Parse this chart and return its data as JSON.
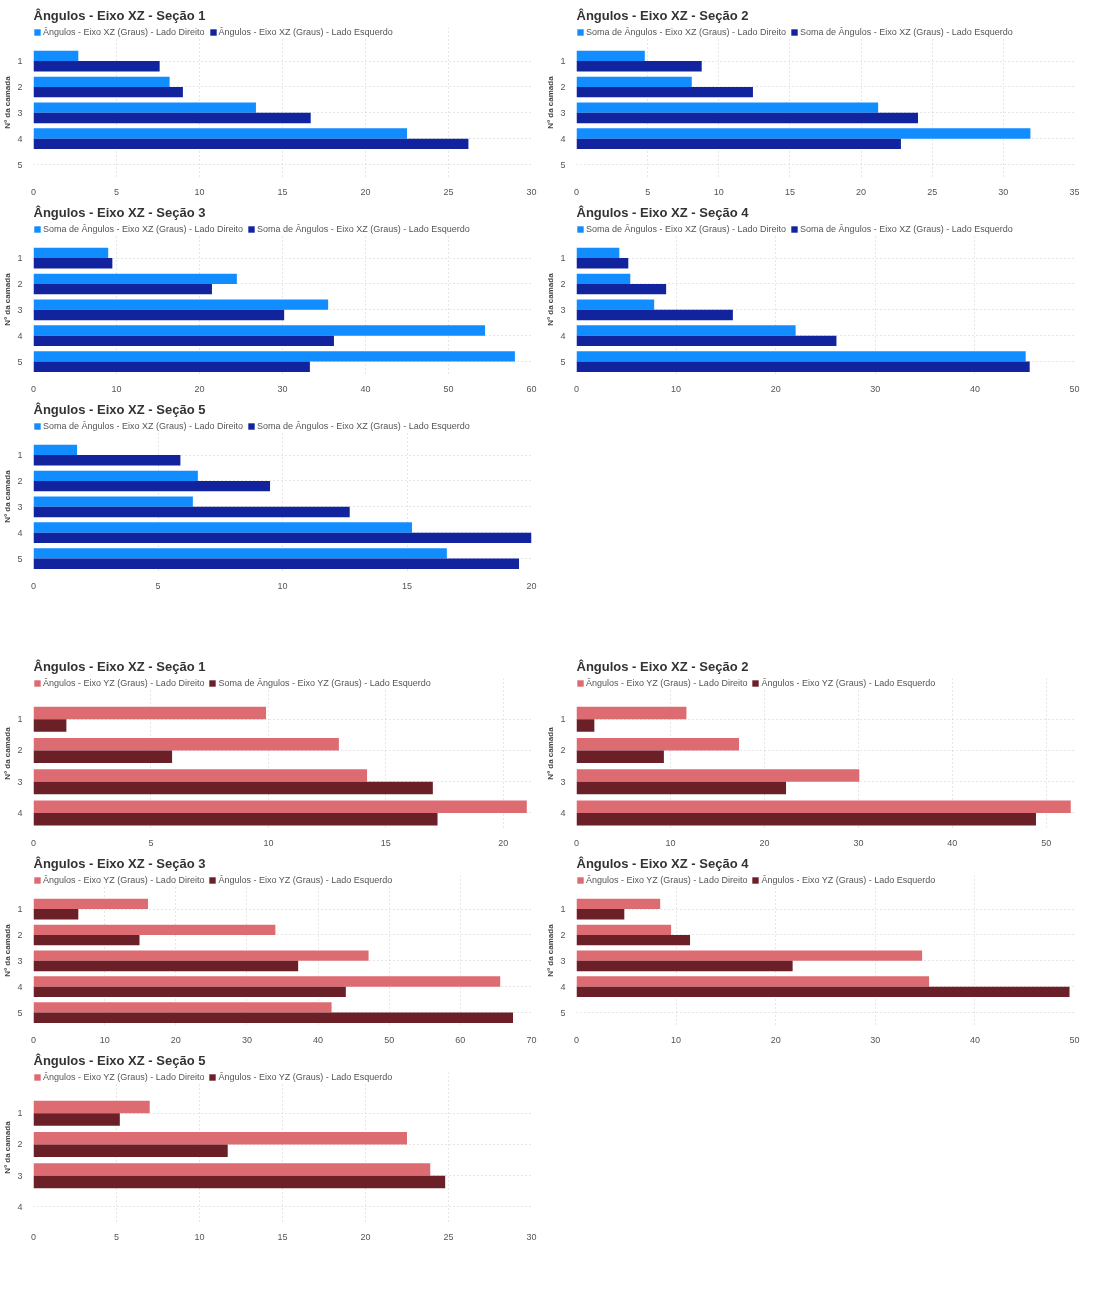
{
  "chart_data": [
    {
      "type": "bar",
      "orientation": "horizontal",
      "title": "Ângulos - Eixo XZ - Seção 1",
      "ylabel": "Nº da camada",
      "categories": [
        "1",
        "2",
        "3",
        "4",
        "5"
      ],
      "xlim": [
        0,
        30
      ],
      "xticks": [
        0,
        5,
        10,
        15,
        20,
        25,
        30
      ],
      "grid": true,
      "legend": "top left",
      "series": [
        {
          "name": "Ângulos - Eixo XZ (Graus) - Lado Direito",
          "color": "#118dff",
          "values": [
            2.7,
            8.2,
            13.4,
            22.5,
            null
          ]
        },
        {
          "name": "Ângulos - Eixo XZ (Graus) - Lado Esquerdo",
          "color": "#12239e",
          "values": [
            7.6,
            9.0,
            16.7,
            26.2,
            null
          ]
        }
      ]
    },
    {
      "type": "bar",
      "orientation": "horizontal",
      "title": "Ângulos - Eixo XZ - Seção 2",
      "ylabel": "Nº da camada",
      "categories": [
        "1",
        "2",
        "3",
        "4",
        "5"
      ],
      "xlim": [
        0,
        35
      ],
      "xticks": [
        0,
        5,
        10,
        15,
        20,
        25,
        30,
        35
      ],
      "grid": true,
      "legend": "top left",
      "series": [
        {
          "name": "Soma de Ângulos - Eixo XZ (Graus) - Lado Direito",
          "color": "#118dff",
          "values": [
            4.8,
            8.1,
            21.2,
            31.9,
            null
          ]
        },
        {
          "name": "Soma de Ângulos - Eixo XZ (Graus) - Lado Esquerdo",
          "color": "#12239e",
          "values": [
            8.8,
            12.4,
            24.0,
            22.8,
            null
          ]
        }
      ]
    },
    {
      "type": "bar",
      "orientation": "horizontal",
      "title": "Ângulos - Eixo XZ - Seção 3",
      "ylabel": "Nº da camada",
      "categories": [
        "1",
        "2",
        "3",
        "4",
        "5"
      ],
      "xlim": [
        0,
        60
      ],
      "xticks": [
        0,
        10,
        20,
        30,
        40,
        50,
        60
      ],
      "grid": true,
      "legend": "top left",
      "series": [
        {
          "name": "Soma de Ângulos - Eixo XZ (Graus) - Lado Direito",
          "color": "#118dff",
          "values": [
            9.0,
            24.5,
            35.5,
            54.4,
            58.0
          ]
        },
        {
          "name": "Soma de Ângulos - Eixo XZ (Graus) - Lado Esquerdo",
          "color": "#12239e",
          "values": [
            9.5,
            21.5,
            30.2,
            36.2,
            33.3
          ]
        }
      ]
    },
    {
      "type": "bar",
      "orientation": "horizontal",
      "title": "Ângulos - Eixo XZ - Seção 4",
      "ylabel": "Nº da camada",
      "categories": [
        "1",
        "2",
        "3",
        "4",
        "5"
      ],
      "xlim": [
        0,
        50
      ],
      "xticks": [
        0,
        10,
        20,
        30,
        40,
        50
      ],
      "grid": true,
      "legend": "top left",
      "series": [
        {
          "name": "Soma de Ângulos - Eixo XZ (Graus) - Lado Direito",
          "color": "#118dff",
          "values": [
            4.3,
            5.4,
            7.8,
            22.0,
            45.1
          ]
        },
        {
          "name": "Soma de Ângulos - Eixo XZ (Graus) - Lado Esquerdo",
          "color": "#12239e",
          "values": [
            5.2,
            9.0,
            15.7,
            26.1,
            45.5
          ]
        }
      ]
    },
    {
      "type": "bar",
      "orientation": "horizontal",
      "title": "Ângulos - Eixo XZ - Seção 5",
      "ylabel": "Nº da camada",
      "categories": [
        "1",
        "2",
        "3",
        "4",
        "5"
      ],
      "xlim": [
        0,
        20
      ],
      "xticks": [
        0,
        5,
        10,
        15,
        20
      ],
      "grid": true,
      "legend": "top left",
      "series": [
        {
          "name": "Soma de Ângulos - Eixo XZ (Graus) - Lado Direito",
          "color": "#118dff",
          "values": [
            1.75,
            6.6,
            6.4,
            15.2,
            16.6
          ]
        },
        {
          "name": "Soma de Ângulos - Eixo XZ (Graus) - Lado Esquerdo",
          "color": "#12239e",
          "values": [
            5.9,
            9.5,
            12.7,
            20.0,
            19.5
          ]
        }
      ]
    },
    {
      "type": "bar",
      "orientation": "horizontal",
      "title": "Ângulos - Eixo XZ - Seção 1",
      "ylabel": "Nº da camada",
      "categories": [
        "1",
        "2",
        "3",
        "4"
      ],
      "xlim": [
        0,
        21.2
      ],
      "xticks": [
        0,
        5,
        10,
        15,
        20
      ],
      "grid": true,
      "legend": "top left",
      "series": [
        {
          "name": "Ângulos - Eixo YZ (Graus) - Lado Direito",
          "color": "#dd6b72",
          "values": [
            9.9,
            13.0,
            14.2,
            21.0
          ]
        },
        {
          "name": "Soma de Ângulos - Eixo YZ (Graus) - Lado Esquerdo",
          "color": "#6b1f27",
          "values": [
            1.4,
            5.9,
            17.0,
            17.2
          ]
        }
      ]
    },
    {
      "type": "bar",
      "orientation": "horizontal",
      "title": "Ângulos - Eixo XZ - Seção 2",
      "ylabel": "Nº da camada",
      "categories": [
        "1",
        "2",
        "3",
        "4"
      ],
      "xlim": [
        0,
        53
      ],
      "xticks": [
        0,
        10,
        20,
        30,
        40,
        50
      ],
      "grid": true,
      "legend": "top left",
      "series": [
        {
          "name": "Ângulos - Eixo YZ (Graus) - Lado Direito",
          "color": "#dd6b72",
          "values": [
            11.7,
            17.3,
            30.1,
            52.6
          ]
        },
        {
          "name": "Ângulos - Eixo YZ (Graus) - Lado Esquerdo",
          "color": "#6b1f27",
          "values": [
            1.9,
            9.3,
            22.3,
            48.9
          ]
        }
      ]
    },
    {
      "type": "bar",
      "orientation": "horizontal",
      "title": "Ângulos - Eixo XZ - Seção 3",
      "ylabel": "Nº da camada",
      "categories": [
        "1",
        "2",
        "3",
        "4",
        "5"
      ],
      "xlim": [
        0,
        70
      ],
      "xticks": [
        0,
        10,
        20,
        30,
        40,
        50,
        60,
        70
      ],
      "grid": true,
      "legend": "top left",
      "series": [
        {
          "name": "Ângulos - Eixo YZ (Graus) - Lado Direito",
          "color": "#dd6b72",
          "values": [
            16.1,
            34.0,
            47.1,
            65.6,
            41.9
          ]
        },
        {
          "name": "Ângulos - Eixo YZ (Graus) - Lado Esquerdo",
          "color": "#6b1f27",
          "values": [
            6.3,
            14.9,
            37.2,
            43.9,
            67.4
          ]
        }
      ]
    },
    {
      "type": "bar",
      "orientation": "horizontal",
      "title": "Ângulos - Eixo XZ - Seção 4",
      "ylabel": "Nº da camada",
      "categories": [
        "1",
        "2",
        "3",
        "4",
        "5"
      ],
      "xlim": [
        0,
        50
      ],
      "xticks": [
        0,
        10,
        20,
        30,
        40,
        50
      ],
      "grid": true,
      "legend": "top left",
      "series": [
        {
          "name": "Ângulos - Eixo YZ (Graus) - Lado Direito",
          "color": "#dd6b72",
          "values": [
            8.4,
            9.5,
            34.7,
            35.4,
            null
          ]
        },
        {
          "name": "Ângulos - Eixo YZ (Graus) - Lado Esquerdo",
          "color": "#6b1f27",
          "values": [
            4.8,
            11.4,
            21.7,
            49.5,
            null
          ]
        }
      ]
    },
    {
      "type": "bar",
      "orientation": "horizontal",
      "title": "Ângulos - Eixo XZ - Seção 5",
      "ylabel": "Nº da camada",
      "categories": [
        "1",
        "2",
        "3",
        "4"
      ],
      "xlim": [
        0,
        30
      ],
      "xticks": [
        0,
        5,
        10,
        15,
        20,
        25,
        30
      ],
      "grid": true,
      "legend": "top left",
      "series": [
        {
          "name": "Ângulos - Eixo YZ (Graus) - Lado Direito",
          "color": "#dd6b72",
          "values": [
            7.0,
            22.5,
            23.9,
            null
          ]
        },
        {
          "name": "Ângulos - Eixo YZ (Graus) - Lado Esquerdo",
          "color": "#6b1f27",
          "values": [
            5.2,
            11.7,
            24.8,
            null
          ]
        }
      ]
    }
  ]
}
